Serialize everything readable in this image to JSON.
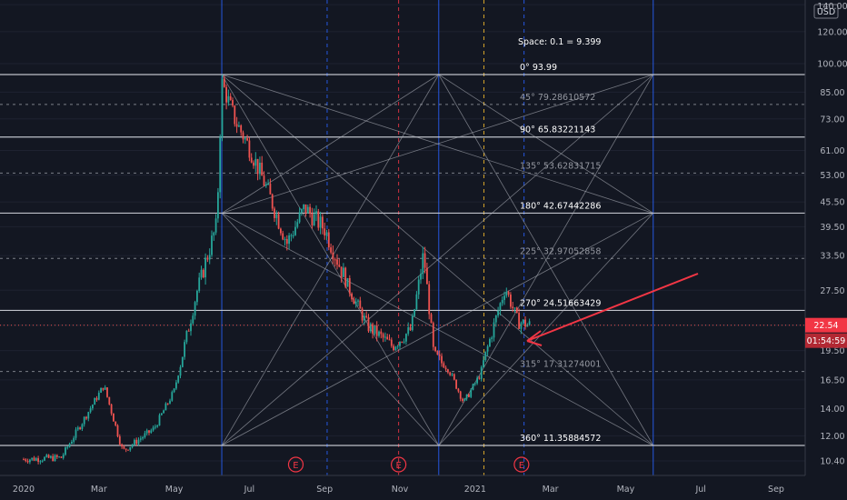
{
  "chart_data": {
    "type": "candlestick",
    "currency": "USD",
    "x_ticks": [
      "2020",
      "Mar",
      "May",
      "Jul",
      "Sep",
      "Nov",
      "2021",
      "Mar",
      "May",
      "Jul",
      "Sep"
    ],
    "y_ticks": [
      "140.00",
      "120.00",
      "100.00",
      "85.00",
      "73.00",
      "61.00",
      "53.00",
      "45.50",
      "39.50",
      "33.50",
      "27.50",
      "22.54",
      "19.50",
      "16.50",
      "14.00",
      "12.00",
      "10.40"
    ],
    "y_scale": "log",
    "last_price": "22.54",
    "countdown": "01:54:59",
    "gann_space_label": "Space:  0.1 = 9.399",
    "gann_levels": [
      {
        "label": "0°  93.99",
        "value": 93.99,
        "solid": true
      },
      {
        "label": "45°  79.28610572",
        "value": 79.2861,
        "solid": false
      },
      {
        "label": "90°  65.83221143",
        "value": 65.8322,
        "solid": true
      },
      {
        "label": "135°  53.62831715",
        "value": 53.6283,
        "solid": false
      },
      {
        "label": "180°  42.67442286",
        "value": 42.6744,
        "solid": true
      },
      {
        "label": "225°  32.97052858",
        "value": 32.9705,
        "solid": false
      },
      {
        "label": "270°  24.51663429",
        "value": 24.5166,
        "solid": true
      },
      {
        "label": "315°  17.31274001",
        "value": 17.3127,
        "solid": false
      },
      {
        "label": "360°  11.35884572",
        "value": 11.3588,
        "solid": true
      }
    ],
    "earnings_markers": [
      "E",
      "E",
      "E"
    ],
    "series": [
      {
        "date": "2020-01",
        "price": 10.5
      },
      {
        "date": "2020-02",
        "price": 10.6
      },
      {
        "date": "2020-03-05",
        "price": 16.0
      },
      {
        "date": "2020-03-20",
        "price": 11.0
      },
      {
        "date": "2020-04-15",
        "price": 12.5
      },
      {
        "date": "2020-05-01",
        "price": 15.5
      },
      {
        "date": "2020-05-20",
        "price": 28.0
      },
      {
        "date": "2020-06-05",
        "price": 40.0
      },
      {
        "date": "2020-06-09",
        "price": 90.0
      },
      {
        "date": "2020-06-20",
        "price": 72.0
      },
      {
        "date": "2020-07-01",
        "price": 62.0
      },
      {
        "date": "2020-07-15",
        "price": 49.0
      },
      {
        "date": "2020-08-01",
        "price": 36.0
      },
      {
        "date": "2020-08-15",
        "price": 44.0
      },
      {
        "date": "2020-09-01",
        "price": 39.0
      },
      {
        "date": "2020-09-20",
        "price": 28.0
      },
      {
        "date": "2020-10-05",
        "price": 22.5
      },
      {
        "date": "2020-10-25",
        "price": 20.0
      },
      {
        "date": "2020-11-10",
        "price": 22.0
      },
      {
        "date": "2020-11-20",
        "price": 34.0
      },
      {
        "date": "2020-11-28",
        "price": 19.0
      },
      {
        "date": "2020-12-10",
        "price": 17.5
      },
      {
        "date": "2020-12-22",
        "price": 14.5
      },
      {
        "date": "2021-01-05",
        "price": 17.0
      },
      {
        "date": "2021-01-15",
        "price": 22.0
      },
      {
        "date": "2021-01-25",
        "price": 28.0
      },
      {
        "date": "2021-02-05",
        "price": 23.0
      },
      {
        "date": "2021-02-15",
        "price": 22.54
      }
    ]
  }
}
